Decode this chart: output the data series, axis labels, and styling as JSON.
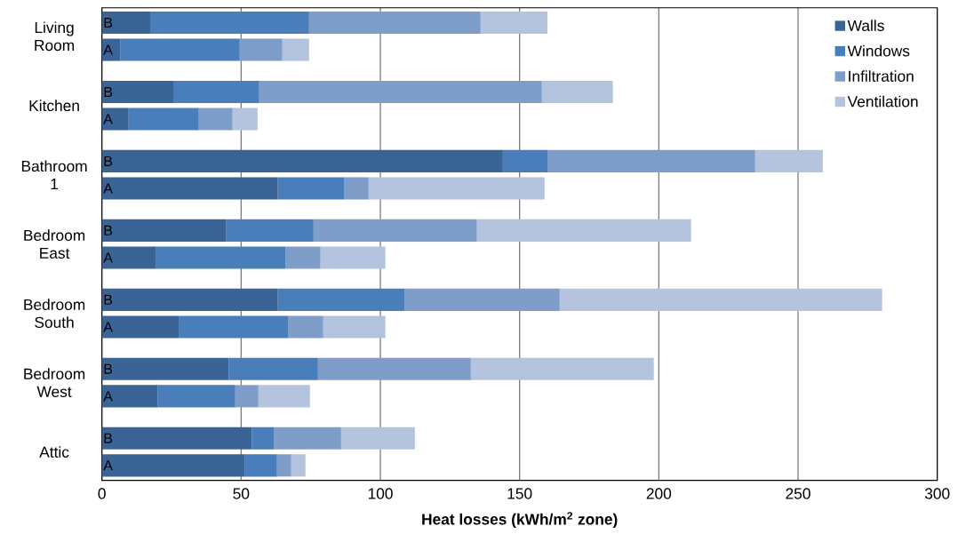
{
  "chart_data": {
    "type": "bar",
    "orientation": "horizontal",
    "stacked": true,
    "categories": [
      "B",
      "A",
      "B",
      "A",
      "B",
      "A",
      "B",
      "A",
      "B",
      "A",
      "B",
      "A",
      "B",
      "A"
    ],
    "series": [
      {
        "name": "Walls",
        "color": "#3b6496",
        "values": [
          17.6,
          6.7,
          25.9,
          9.6,
          144,
          63.2,
          44.7,
          19.5,
          63.2,
          27.8,
          45.6,
          20.1,
          53.9,
          51.4
        ]
      },
      {
        "name": "Windows",
        "color": "#4a7ebb",
        "values": [
          56.8,
          42.8,
          30.6,
          25.2,
          16,
          23.9,
          31.3,
          46.5,
          45.6,
          39.2,
          32,
          27.8,
          8,
          11.5
        ]
      },
      {
        "name": "Infiltration",
        "color": "#7f9dc9",
        "values": [
          61.6,
          15.3,
          101.5,
          12.1,
          74.6,
          8.7,
          58.7,
          12.5,
          55.6,
          12.5,
          54.9,
          8.3,
          24,
          5.1
        ]
      },
      {
        "name": "Ventilation",
        "color": "#b4c3de",
        "values": [
          24,
          9.6,
          25.5,
          9,
          24.3,
          63.2,
          76.9,
          23.3,
          115.8,
          22.3,
          65.7,
          18.5,
          26.5,
          5.1
        ]
      }
    ],
    "annotations": [
      "Living Room",
      "Kitchen",
      "Bathroom 1",
      "Bedroom East",
      "Bedroom South",
      "Bedroom West",
      "Attic"
    ],
    "xlabel": "Heat losses (kWh/m$^{2}$ zone)",
    "xlim": [
      0,
      300
    ],
    "xticks": [
      0,
      50,
      100,
      150,
      200,
      250,
      300
    ],
    "grid": "x",
    "legend": "top right"
  }
}
